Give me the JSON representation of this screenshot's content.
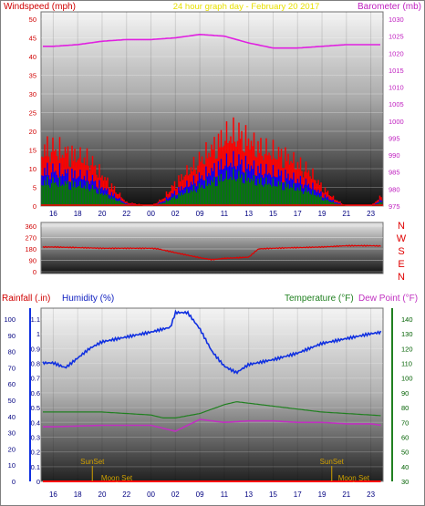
{
  "header": {
    "left_title": "Windspeed (mph)",
    "center_title": "24 hour graph day - February 20 2017",
    "right_title": "Barometer (mb)"
  },
  "labels": {
    "rainfall": "Rainfall (.in)",
    "humidity": "Humidity (%)",
    "temperature": "Temperature (°F)",
    "dewpoint": "Dew Point (°F)",
    "sunset": "SunSet",
    "moonset": "Moon Set",
    "compass": [
      "N",
      "W",
      "S",
      "E",
      "N"
    ]
  },
  "colors": {
    "windspeed": "#ff0000",
    "wind_blue": "#0000ff",
    "wind_green": "#008000",
    "barometer": "#e020e0",
    "direction": "#e00000",
    "humidity": "#1030e0",
    "temperature": "#208020",
    "dewpoint": "#c030c0",
    "rainfall": "#ff0000",
    "annotation": "#d0a000"
  },
  "chart_data": [
    {
      "type": "line",
      "title": "24 hour graph day - February 20 2017",
      "x_ticks": [
        "16",
        "18",
        "20",
        "22",
        "00",
        "02",
        "09",
        "11",
        "13",
        "15",
        "17",
        "19",
        "21",
        "23"
      ],
      "left_axis": {
        "label": "Windspeed (mph)",
        "range": [
          0,
          50
        ],
        "ticks": [
          0,
          5,
          10,
          15,
          20,
          25,
          30,
          35,
          40,
          45,
          50
        ]
      },
      "right_axis": {
        "label": "Barometer (mb)",
        "range": [
          975,
          1030
        ],
        "ticks": [
          975,
          980,
          985,
          990,
          995,
          1000,
          1005,
          1010,
          1015,
          1020,
          1025,
          1030
        ]
      },
      "series": [
        {
          "name": "Barometer (mb)",
          "axis": "right",
          "x": [
            0,
            1,
            2,
            3,
            4,
            5,
            6,
            7,
            8,
            9,
            10,
            11,
            12,
            13
          ],
          "values": [
            1022,
            1022.5,
            1023.5,
            1024,
            1024,
            1024.5,
            1025.5,
            1025,
            1023,
            1021.5,
            1021.5,
            1022,
            1022.5,
            1022.5
          ]
        },
        {
          "name": "Windspeed (mph)",
          "axis": "left",
          "x": [
            0,
            0.5,
            1,
            1.5,
            2,
            3,
            4,
            4.5,
            5,
            5.5,
            6,
            6.5,
            7,
            7.5,
            8,
            8.5,
            9,
            9.5,
            10,
            10.5,
            11,
            11.5,
            12,
            13,
            13.5,
            13.9
          ],
          "values": [
            15,
            14,
            13,
            12,
            8,
            1,
            0,
            2,
            6,
            9,
            12,
            15,
            18,
            19,
            17,
            15,
            14,
            13,
            11,
            9,
            5,
            2,
            0,
            0,
            3,
            0
          ]
        }
      ]
    },
    {
      "type": "line",
      "y_ticks": [
        0,
        90,
        180,
        270,
        360
      ],
      "range": [
        0,
        360
      ],
      "right_labels": [
        "N",
        "W",
        "S",
        "E",
        "N"
      ],
      "series": [
        {
          "name": "Wind Direction",
          "x": [
            0,
            1,
            2,
            3,
            4,
            4.3,
            5,
            6,
            6.5,
            7,
            7.5,
            8,
            8.4,
            9,
            10,
            11,
            12,
            13,
            13.9
          ],
          "values": [
            195,
            190,
            185,
            185,
            185,
            180,
            150,
            110,
            95,
            105,
            110,
            115,
            180,
            185,
            190,
            195,
            205,
            205,
            200
          ]
        }
      ]
    },
    {
      "type": "line",
      "x_ticks": [
        "16",
        "18",
        "20",
        "22",
        "00",
        "02",
        "09",
        "11",
        "13",
        "15",
        "17",
        "19",
        "21",
        "23"
      ],
      "left_axis_rain": {
        "label": "Rainfall (.in)",
        "range": [
          0,
          1.1
        ],
        "ticks": [
          0,
          0.1,
          0.2,
          0.3,
          0.4,
          0.5,
          0.6,
          0.7,
          0.8,
          0.9,
          1,
          1.1
        ]
      },
      "left_axis_humidity": {
        "label": "Humidity (%)",
        "range": [
          0,
          100
        ],
        "ticks": [
          0,
          10,
          20,
          30,
          40,
          50,
          60,
          70,
          80,
          90,
          100
        ]
      },
      "right_axis": {
        "label": "Temperature (°F)",
        "range": [
          30,
          140
        ],
        "ticks": [
          30,
          40,
          50,
          60,
          70,
          80,
          90,
          100,
          110,
          120,
          130,
          140
        ]
      },
      "series": [
        {
          "name": "Humidity (%)",
          "axis": "humidity",
          "x": [
            0,
            0.5,
            1,
            1.5,
            2,
            3,
            4,
            4.8,
            5,
            5.5,
            6,
            6.5,
            7,
            7.5,
            8,
            9,
            10,
            11,
            12,
            13,
            13.9
          ],
          "values": [
            73,
            70,
            76,
            82,
            86,
            89,
            92,
            95,
            104,
            104,
            94,
            80,
            71,
            67,
            72,
            75,
            79,
            85,
            88,
            91,
            93
          ]
        },
        {
          "name": "Temperature (°F)",
          "axis": "right",
          "x": [
            0,
            2,
            4,
            4.5,
            5,
            6,
            7,
            7.5,
            8,
            9,
            10,
            11,
            12,
            13,
            13.9
          ],
          "values": [
            77,
            77,
            75,
            73,
            73,
            76,
            82,
            84,
            83,
            81,
            79,
            77,
            76,
            75,
            74
          ]
        },
        {
          "name": "Dew Point (°F)",
          "axis": "right",
          "x": [
            0,
            2,
            4,
            4.5,
            5,
            5.5,
            6,
            7,
            8,
            9,
            10,
            11,
            12,
            13,
            13.9
          ],
          "values": [
            67,
            68,
            68,
            66,
            64,
            68,
            72,
            70,
            71,
            71,
            70,
            70,
            69,
            69,
            67
          ]
        },
        {
          "name": "Rainfall (.in)",
          "axis": "rain",
          "x": [
            0,
            13.9
          ],
          "values": [
            0,
            0
          ]
        }
      ],
      "annotations": [
        {
          "text": "SunSet",
          "x": 1.6
        },
        {
          "text": "Moon Set",
          "x": 2.6
        },
        {
          "text": "SunSet",
          "x": 11.4
        },
        {
          "text": "Moon Set",
          "x": 12.3
        }
      ]
    }
  ]
}
